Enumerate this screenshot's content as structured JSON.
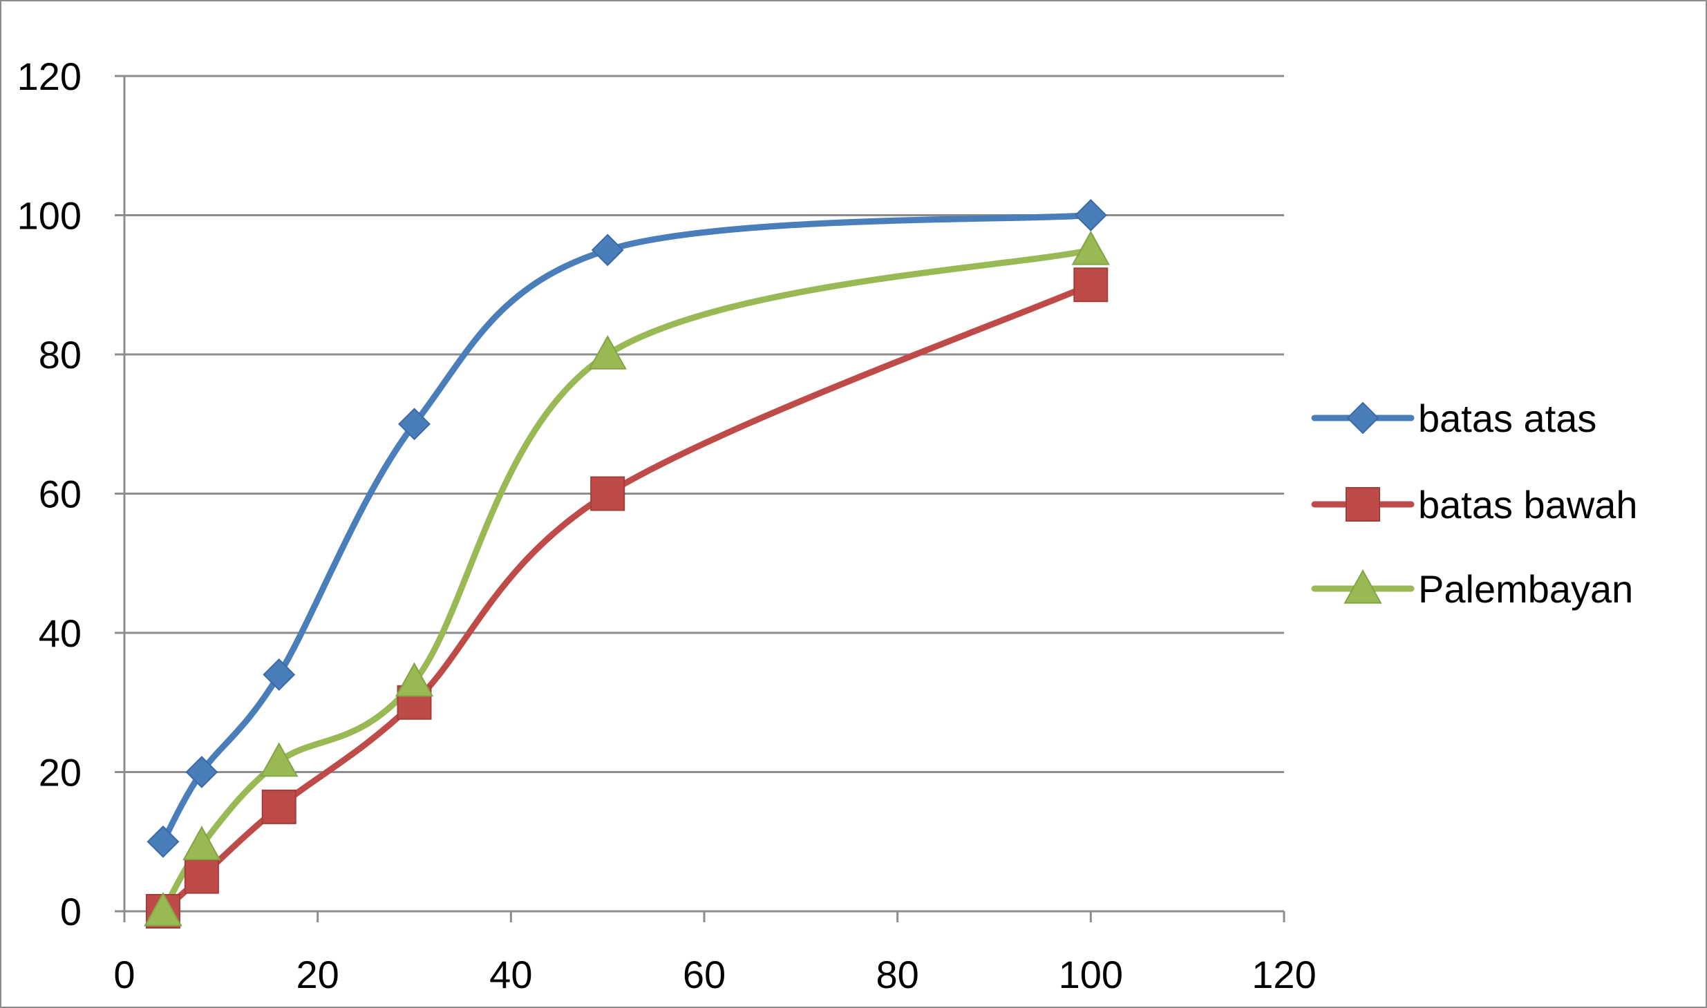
{
  "chart_data": {
    "type": "line",
    "title": "",
    "xlabel": "",
    "ylabel": "",
    "xlim": [
      0,
      120
    ],
    "ylim": [
      0,
      120
    ],
    "x_ticks": [
      0,
      20,
      40,
      60,
      80,
      100,
      120
    ],
    "y_ticks": [
      0,
      20,
      40,
      60,
      80,
      100,
      120
    ],
    "grid": "horizontal",
    "smooth": true,
    "legend_position": "right",
    "series": [
      {
        "name": "batas atas",
        "color": "#4a7ebb",
        "marker": "diamond",
        "x": [
          4,
          8,
          16,
          30,
          50,
          100
        ],
        "y": [
          10,
          20,
          34,
          70,
          95,
          100
        ]
      },
      {
        "name": "batas bawah",
        "color": "#be4b48",
        "marker": "square",
        "x": [
          4,
          8,
          16,
          30,
          50,
          100
        ],
        "y": [
          0,
          5,
          15,
          30,
          60,
          90
        ]
      },
      {
        "name": "Palembayan",
        "color": "#98b954",
        "marker": "triangle",
        "x": [
          4,
          8,
          16,
          30,
          50,
          100
        ],
        "y": [
          0,
          9.5,
          21.5,
          33,
          80,
          95
        ]
      }
    ]
  }
}
